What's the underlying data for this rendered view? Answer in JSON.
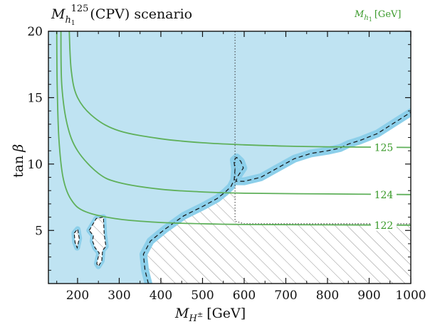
{
  "chart_data": {
    "type": "contour",
    "title": "M_h1^125(CPV) scenario",
    "title_parts": {
      "M": "M",
      "h1": "h",
      "sub1": "1",
      "sup": "125",
      "rest": "(CPV) scenario"
    },
    "xlabel": {
      "M": "M",
      "H": "H",
      "pm": "±",
      "unit": "[GeV]"
    },
    "ylabel": {
      "tan": "tan",
      "beta": "β"
    },
    "legend_title": {
      "M": "M",
      "h": "h",
      "sub": "1",
      "unit": "[GeV]"
    },
    "xlim": [
      130,
      1000
    ],
    "ylim": [
      1,
      20
    ],
    "xticks": [
      200,
      300,
      400,
      500,
      600,
      700,
      800,
      900,
      1000
    ],
    "yticks": [
      5,
      10,
      15,
      20
    ],
    "colors": {
      "excluded_fill": "#bfe3f2",
      "band_fill": "#8ccfea",
      "contour_line": "#5fb05a",
      "contour_label": "#3a9a2a",
      "hatch": "#909090",
      "boundary": "#111111"
    },
    "contours": [
      {
        "label": "125",
        "points": [
          [
            180,
            20
          ],
          [
            185,
            17
          ],
          [
            200,
            15
          ],
          [
            240,
            13.5
          ],
          [
            300,
            12.5
          ],
          [
            400,
            11.9
          ],
          [
            500,
            11.6
          ],
          [
            600,
            11.45
          ],
          [
            700,
            11.35
          ],
          [
            800,
            11.3
          ],
          [
            1000,
            11.25
          ]
        ]
      },
      {
        "label": "124",
        "points": [
          [
            160,
            20
          ],
          [
            162,
            16
          ],
          [
            175,
            13
          ],
          [
            200,
            11
          ],
          [
            250,
            9.3
          ],
          [
            300,
            8.6
          ],
          [
            400,
            8.1
          ],
          [
            500,
            7.9
          ],
          [
            600,
            7.8
          ],
          [
            800,
            7.75
          ],
          [
            1000,
            7.7
          ]
        ]
      },
      {
        "label": "122",
        "points": [
          [
            150,
            20
          ],
          [
            151,
            16
          ],
          [
            155,
            12
          ],
          [
            165,
            9
          ],
          [
            185,
            7.3
          ],
          [
            220,
            6.4
          ],
          [
            300,
            5.85
          ],
          [
            400,
            5.6
          ],
          [
            500,
            5.5
          ],
          [
            600,
            5.45
          ],
          [
            800,
            5.42
          ],
          [
            1000,
            5.4
          ]
        ]
      }
    ],
    "excluded_boundary": [
      [
        130,
        1
      ],
      [
        370,
        1
      ],
      [
        362,
        2.0
      ],
      [
        358,
        3.2
      ],
      [
        375,
        4.2
      ],
      [
        410,
        5.1
      ],
      [
        455,
        6.1
      ],
      [
        500,
        6.8
      ],
      [
        535,
        7.4
      ],
      [
        555,
        7.9
      ],
      [
        568,
        8.3
      ],
      [
        576,
        8.8
      ],
      [
        578,
        9.6
      ],
      [
        575,
        10.3
      ],
      [
        582,
        10.5
      ],
      [
        592,
        10.2
      ],
      [
        598,
        9.7
      ],
      [
        585,
        9.1
      ],
      [
        580,
        8.7
      ],
      [
        600,
        8.7
      ],
      [
        640,
        9.0
      ],
      [
        680,
        9.7
      ],
      [
        720,
        10.4
      ],
      [
        760,
        10.8
      ],
      [
        800,
        11.0
      ],
      [
        830,
        11.2
      ],
      [
        850,
        11.5
      ],
      [
        880,
        11.8
      ],
      [
        920,
        12.3
      ],
      [
        960,
        13.1
      ],
      [
        1000,
        13.9
      ],
      [
        1000,
        20
      ],
      [
        130,
        20
      ]
    ],
    "allowed_islands": [
      [
        [
          228,
          5.0
        ],
        [
          245,
          5.9
        ],
        [
          262,
          6.0
        ],
        [
          264,
          4.7
        ],
        [
          268,
          3.8
        ],
        [
          260,
          3.5
        ],
        [
          258,
          2.7
        ],
        [
          250,
          2.3
        ],
        [
          246,
          2.5
        ],
        [
          252,
          3.3
        ],
        [
          242,
          3.7
        ],
        [
          236,
          4.2
        ],
        [
          238,
          4.6
        ]
      ],
      [
        [
          192,
          4.8
        ],
        [
          200,
          5.1
        ],
        [
          204,
          4.4
        ],
        [
          199,
          3.7
        ],
        [
          194,
          4.1
        ]
      ]
    ],
    "hatched_regions": [
      [
        [
          130,
          1
        ],
        [
          580,
          1
        ],
        [
          580,
          20
        ],
        [
          130,
          20
        ]
      ],
      [
        [
          580,
          1
        ],
        [
          1000,
          1
        ],
        [
          1000,
          5.5
        ],
        [
          580,
          5.5
        ]
      ]
    ],
    "hatch_boundary_dotted": [
      [
        578,
        20
      ],
      [
        578,
        5.7
      ],
      [
        600,
        5.5
      ],
      [
        1000,
        5.5
      ]
    ]
  }
}
